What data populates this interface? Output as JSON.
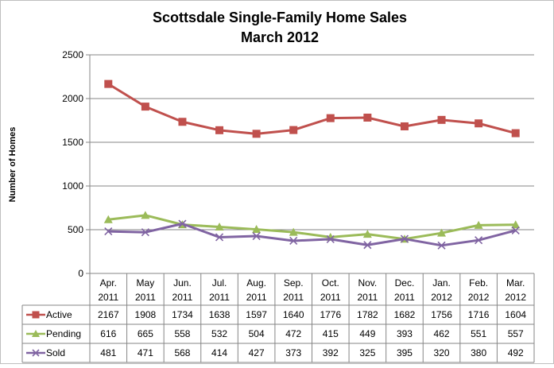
{
  "chart_data": {
    "type": "line",
    "title_lines": [
      "Scottsdale Single-Family  Home Sales",
      "March 2012"
    ],
    "xlabel": "",
    "ylabel": "Number of Homes",
    "ylim": [
      0,
      2500
    ],
    "yticks": [
      0,
      500,
      1000,
      1500,
      2000,
      2500
    ],
    "grid": "horizontal",
    "legend": "data-table",
    "categories": [
      [
        "Apr.",
        "2011"
      ],
      [
        "May",
        "2011"
      ],
      [
        "Jun.",
        "2011"
      ],
      [
        "Jul.",
        "2011"
      ],
      [
        "Aug.",
        "2011"
      ],
      [
        "Sep.",
        "2011"
      ],
      [
        "Oct.",
        "2011"
      ],
      [
        "Nov.",
        "2011"
      ],
      [
        "Dec.",
        "2011"
      ],
      [
        "Jan.",
        "2012"
      ],
      [
        "Feb.",
        "2012"
      ],
      [
        "Mar.",
        "2012"
      ]
    ],
    "series": [
      {
        "name": "Active",
        "color": "#c0504d",
        "marker": "square",
        "values": [
          2167,
          1908,
          1734,
          1638,
          1597,
          1640,
          1776,
          1782,
          1682,
          1756,
          1716,
          1604
        ]
      },
      {
        "name": "Pending",
        "color": "#9bbb59",
        "marker": "triangle",
        "values": [
          616,
          665,
          558,
          532,
          504,
          472,
          415,
          449,
          393,
          462,
          551,
          557
        ]
      },
      {
        "name": "Sold",
        "color": "#8064a2",
        "marker": "x",
        "values": [
          481,
          471,
          568,
          414,
          427,
          373,
          392,
          325,
          395,
          320,
          380,
          492
        ]
      }
    ]
  }
}
